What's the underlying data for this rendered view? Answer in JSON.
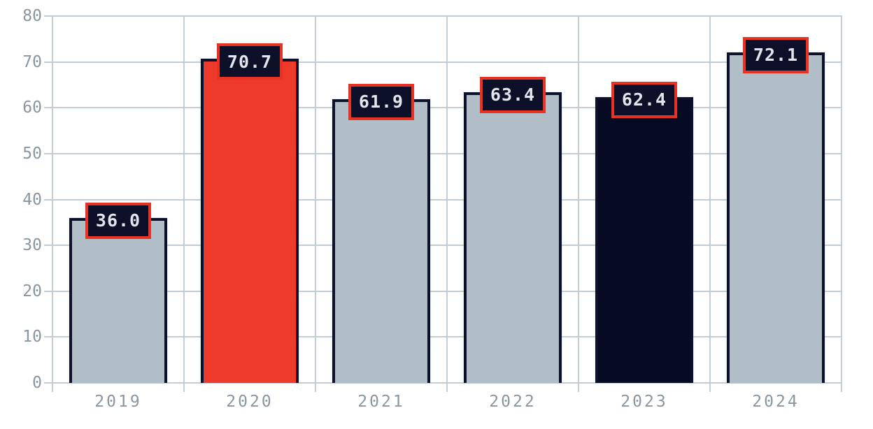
{
  "chart_data": {
    "type": "bar",
    "title": "",
    "xlabel": "",
    "ylabel": "",
    "categories": [
      "2019",
      "2020",
      "2021",
      "2022",
      "2023",
      "2024"
    ],
    "values": [
      36.0,
      70.7,
      61.9,
      63.4,
      62.4,
      72.1
    ],
    "value_labels": [
      "36.0",
      "70.7",
      "61.9",
      "63.4",
      "62.4",
      "72.1"
    ],
    "ylim": [
      0,
      80
    ],
    "ytick_step": 10,
    "yticks": [
      "0",
      "10",
      "20",
      "30",
      "40",
      "50",
      "60",
      "70",
      "80"
    ],
    "grid": "on",
    "legend": "none",
    "colors": {
      "background": "#ffffff",
      "grid": "#c2cdd6",
      "tick_label": "#8b96a0",
      "bar_fills": [
        "#b2bec7",
        "#ee3a2b",
        "#b2bec7",
        "#b2bec7",
        "#060a23",
        "#b2bec7"
      ],
      "bar_border": "#0d1129",
      "label_box_bg": "#0c1129",
      "label_box_border": "#e73224",
      "label_box_text": "#e2e6ec"
    }
  }
}
